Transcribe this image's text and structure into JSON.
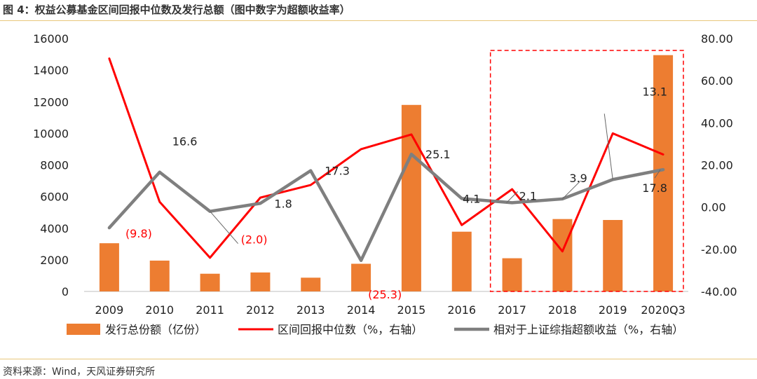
{
  "figure": {
    "title": "图 4：权益公募基金区间回报中位数及发行总额（图中数字为超额收益率）",
    "source": "资料来源：Wind，天风证券研究所"
  },
  "chart_data": {
    "type": "bar+line",
    "categories": [
      "2009",
      "2010",
      "2011",
      "2012",
      "2013",
      "2014",
      "2015",
      "2016",
      "2017",
      "2018",
      "2019",
      "2020Q3"
    ],
    "left_axis": {
      "min": 0,
      "max": 16000,
      "ticks": [
        "0",
        "2000",
        "4000",
        "6000",
        "8000",
        "10000",
        "12000",
        "14000",
        "16000"
      ]
    },
    "right_axis": {
      "min": -40,
      "max": 80,
      "ticks": [
        "-40.00",
        "-20.00",
        "0.00",
        "20.00",
        "40.00",
        "60.00",
        "80.00"
      ]
    },
    "series": [
      {
        "name": "发行总份额（亿份）",
        "type": "bar",
        "axis": "left",
        "color": "#ed7d31",
        "values": [
          3050,
          1950,
          1120,
          1200,
          870,
          1750,
          11800,
          3780,
          2100,
          4580,
          4520,
          14950
        ]
      },
      {
        "name": "区间回报中位数（%，右轴）",
        "type": "line",
        "axis": "right",
        "color": "#ff0000",
        "values": [
          70.5,
          2.5,
          -24.0,
          4.5,
          10.5,
          27.5,
          34.5,
          -8.5,
          8.5,
          -21.0,
          35.0,
          25.0
        ]
      },
      {
        "name": "相对于上证综指超额收益（%，右轴）",
        "type": "line",
        "axis": "right",
        "color": "#7f7f7f",
        "values": [
          -9.8,
          16.6,
          -2.0,
          1.8,
          17.3,
          -25.3,
          25.1,
          4.1,
          2.1,
          3.9,
          13.1,
          17.8
        ]
      }
    ],
    "annotations": [
      {
        "index": 0,
        "text": "(9.8)",
        "color": "#ff0000"
      },
      {
        "index": 1,
        "text": "16.6",
        "color": "#222222"
      },
      {
        "index": 2,
        "text": "(2.0)",
        "color": "#ff0000"
      },
      {
        "index": 3,
        "text": "1.8",
        "color": "#222222"
      },
      {
        "index": 4,
        "text": "17.3",
        "color": "#222222"
      },
      {
        "index": 5,
        "text": "(25.3)",
        "color": "#ff0000"
      },
      {
        "index": 6,
        "text": "25.1",
        "color": "#222222"
      },
      {
        "index": 7,
        "text": "4.1",
        "color": "#222222"
      },
      {
        "index": 8,
        "text": "2.1",
        "color": "#222222"
      },
      {
        "index": 9,
        "text": "3.9",
        "color": "#222222"
      },
      {
        "index": 10,
        "text": "13.1",
        "color": "#222222"
      },
      {
        "index": 11,
        "text": "17.8",
        "color": "#222222"
      }
    ],
    "highlight": {
      "from_category": "2017",
      "to_category": "2020Q3",
      "style": "red-dashed-box"
    },
    "legend_position": "bottom"
  }
}
